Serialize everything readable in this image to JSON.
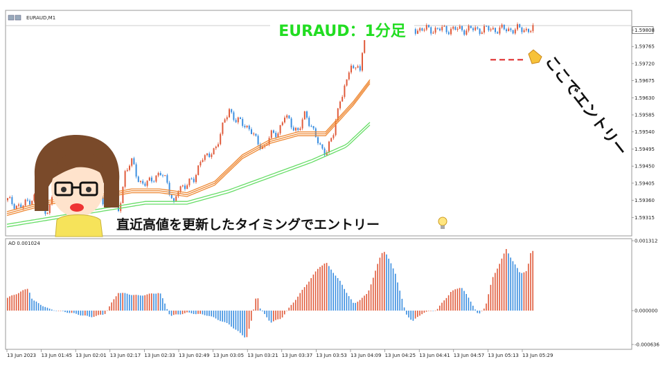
{
  "chart_data": [
    {
      "type": "candlestick",
      "symbol_label": "EURAUD,M1",
      "title": "EURAUD：1分足",
      "current_price": "1.59808",
      "y_ticks": [
        "1.59808",
        "1.59765",
        "1.59720",
        "1.59675",
        "1.59630",
        "1.59585",
        "1.59540",
        "1.59495",
        "1.59450",
        "1.59405",
        "1.59360",
        "1.59315"
      ],
      "x_ticks": [
        "13 Jun 2023",
        "13 Jun 01:45",
        "13 Jun 02:01",
        "13 Jun 02:17",
        "13 Jun 02:33",
        "13 Jun 02:49",
        "13 Jun 03:05",
        "13 Jun 03:21",
        "13 Jun 03:37",
        "13 Jun 03:53",
        "13 Jun 04:09",
        "13 Jun 04:25",
        "13 Jun 04:41",
        "13 Jun 04:57",
        "13 Jun 05:13",
        "13 Jun 05:29"
      ],
      "ylim": [
        1.5929,
        1.5982
      ],
      "price_path": [
        [
          0,
          1.5936
        ],
        [
          10,
          1.5935
        ],
        [
          20,
          1.5934
        ],
        [
          30,
          1.5936
        ],
        [
          40,
          1.5937
        ],
        [
          50,
          1.5933
        ],
        [
          60,
          1.5934
        ],
        [
          70,
          1.5939
        ],
        [
          80,
          1.5941
        ],
        [
          90,
          1.5938
        ],
        [
          100,
          1.5939
        ],
        [
          110,
          1.5937
        ],
        [
          120,
          1.5939
        ],
        [
          130,
          1.5936
        ],
        [
          140,
          1.5935
        ],
        [
          150,
          1.5938
        ],
        [
          160,
          1.5933
        ],
        [
          164,
          1.5937
        ],
        [
          170,
          1.5944
        ],
        [
          180,
          1.5946
        ],
        [
          190,
          1.5941
        ],
        [
          200,
          1.594
        ],
        [
          210,
          1.5942
        ],
        [
          220,
          1.5943
        ],
        [
          230,
          1.5941
        ],
        [
          240,
          1.5935
        ],
        [
          245,
          1.5938
        ],
        [
          260,
          1.5941
        ],
        [
          270,
          1.5941
        ],
        [
          280,
          1.5948
        ],
        [
          290,
          1.5947
        ],
        [
          300,
          1.595
        ],
        [
          310,
          1.5955
        ],
        [
          320,
          1.596
        ],
        [
          330,
          1.5957
        ],
        [
          340,
          1.5956
        ],
        [
          350,
          1.5955
        ],
        [
          360,
          1.5951
        ],
        [
          370,
          1.595
        ],
        [
          380,
          1.5953
        ],
        [
          390,
          1.5954
        ],
        [
          400,
          1.5958
        ],
        [
          410,
          1.5956
        ],
        [
          420,
          1.5954
        ],
        [
          430,
          1.5959
        ],
        [
          440,
          1.5955
        ],
        [
          450,
          1.595
        ],
        [
          460,
          1.5949
        ],
        [
          470,
          1.5953
        ],
        [
          480,
          1.5963
        ],
        [
          490,
          1.5967
        ],
        [
          495,
          1.5972
        ],
        [
          500,
          1.597
        ],
        [
          505,
          1.5973
        ],
        [
          510,
          1.5969
        ],
        [
          514,
          1.5978
        ],
        [
          520,
          1.5981
        ]
      ],
      "fast_ma": [
        [
          0,
          1.5932
        ],
        [
          60,
          1.5935
        ],
        [
          120,
          1.5936
        ],
        [
          180,
          1.5938
        ],
        [
          220,
          1.5938
        ],
        [
          260,
          1.5937
        ],
        [
          300,
          1.594
        ],
        [
          340,
          1.5947
        ],
        [
          380,
          1.5951
        ],
        [
          420,
          1.5953
        ],
        [
          460,
          1.5953
        ],
        [
          500,
          1.5961
        ],
        [
          525,
          1.5967
        ]
      ],
      "slow_ma": [
        [
          0,
          1.5929
        ],
        [
          100,
          1.5932
        ],
        [
          200,
          1.5935
        ],
        [
          260,
          1.5935
        ],
        [
          320,
          1.5938
        ],
        [
          380,
          1.5942
        ],
        [
          440,
          1.5946
        ],
        [
          490,
          1.595
        ],
        [
          525,
          1.5956
        ]
      ],
      "entry_level": 1.5973
    },
    {
      "type": "histogram",
      "indicator_label": "AO 0.001024",
      "y_ticks": [
        "0.001312",
        "0.000000",
        "-0.000636"
      ],
      "ylim": [
        -0.000636,
        0.001312
      ],
      "ao_path": [
        [
          0,
          0.00024
        ],
        [
          30,
          0.00042
        ],
        [
          36,
          0.0002
        ],
        [
          60,
          3e-05
        ],
        [
          90,
          -4e-05
        ],
        [
          120,
          -0.00012
        ],
        [
          140,
          -7e-05
        ],
        [
          160,
          0.00034
        ],
        [
          190,
          0.00028
        ],
        [
          220,
          0.00034
        ],
        [
          235,
          -0.0001
        ],
        [
          260,
          -4e-05
        ],
        [
          290,
          -9e-05
        ],
        [
          320,
          -0.00026
        ],
        [
          345,
          -0.00052
        ],
        [
          352,
          -0.0002
        ],
        [
          360,
          0.00034
        ],
        [
          365,
          3e-05
        ],
        [
          380,
          -0.00022
        ],
        [
          395,
          -0.00015
        ],
        [
          420,
          0.00028
        ],
        [
          450,
          0.00082
        ],
        [
          460,
          0.0009
        ],
        [
          480,
          0.00055
        ],
        [
          500,
          0.00012
        ],
        [
          520,
          0.00032
        ],
        [
          540,
          0.00108
        ],
        [
          545,
          0.00112
        ],
        [
          560,
          0.0007
        ],
        [
          575,
          -6e-05
        ],
        [
          585,
          -0.0002
        ],
        [
          600,
          -4e-05
        ],
        [
          620,
          2e-05
        ],
        [
          640,
          0.00035
        ],
        [
          655,
          0.00045
        ],
        [
          670,
          0.00015
        ],
        [
          680,
          -9e-05
        ],
        [
          690,
          8e-05
        ],
        [
          700,
          0.0006
        ],
        [
          720,
          0.00115
        ],
        [
          740,
          0.0007
        ],
        [
          750,
          0.00075
        ],
        [
          756,
          0.00112
        ]
      ]
    }
  ],
  "annotations": {
    "highs_text": "直近高値を更新したタイミングでエントリー",
    "entry_text": "ここでエントリー"
  },
  "colors": {
    "bull": "#e05a3a",
    "bear": "#3a8ee0",
    "fast_ma": "#ee8833",
    "slow_ma": "#66dd66",
    "title": "#22dd22",
    "entry_line": "#dd2222"
  }
}
